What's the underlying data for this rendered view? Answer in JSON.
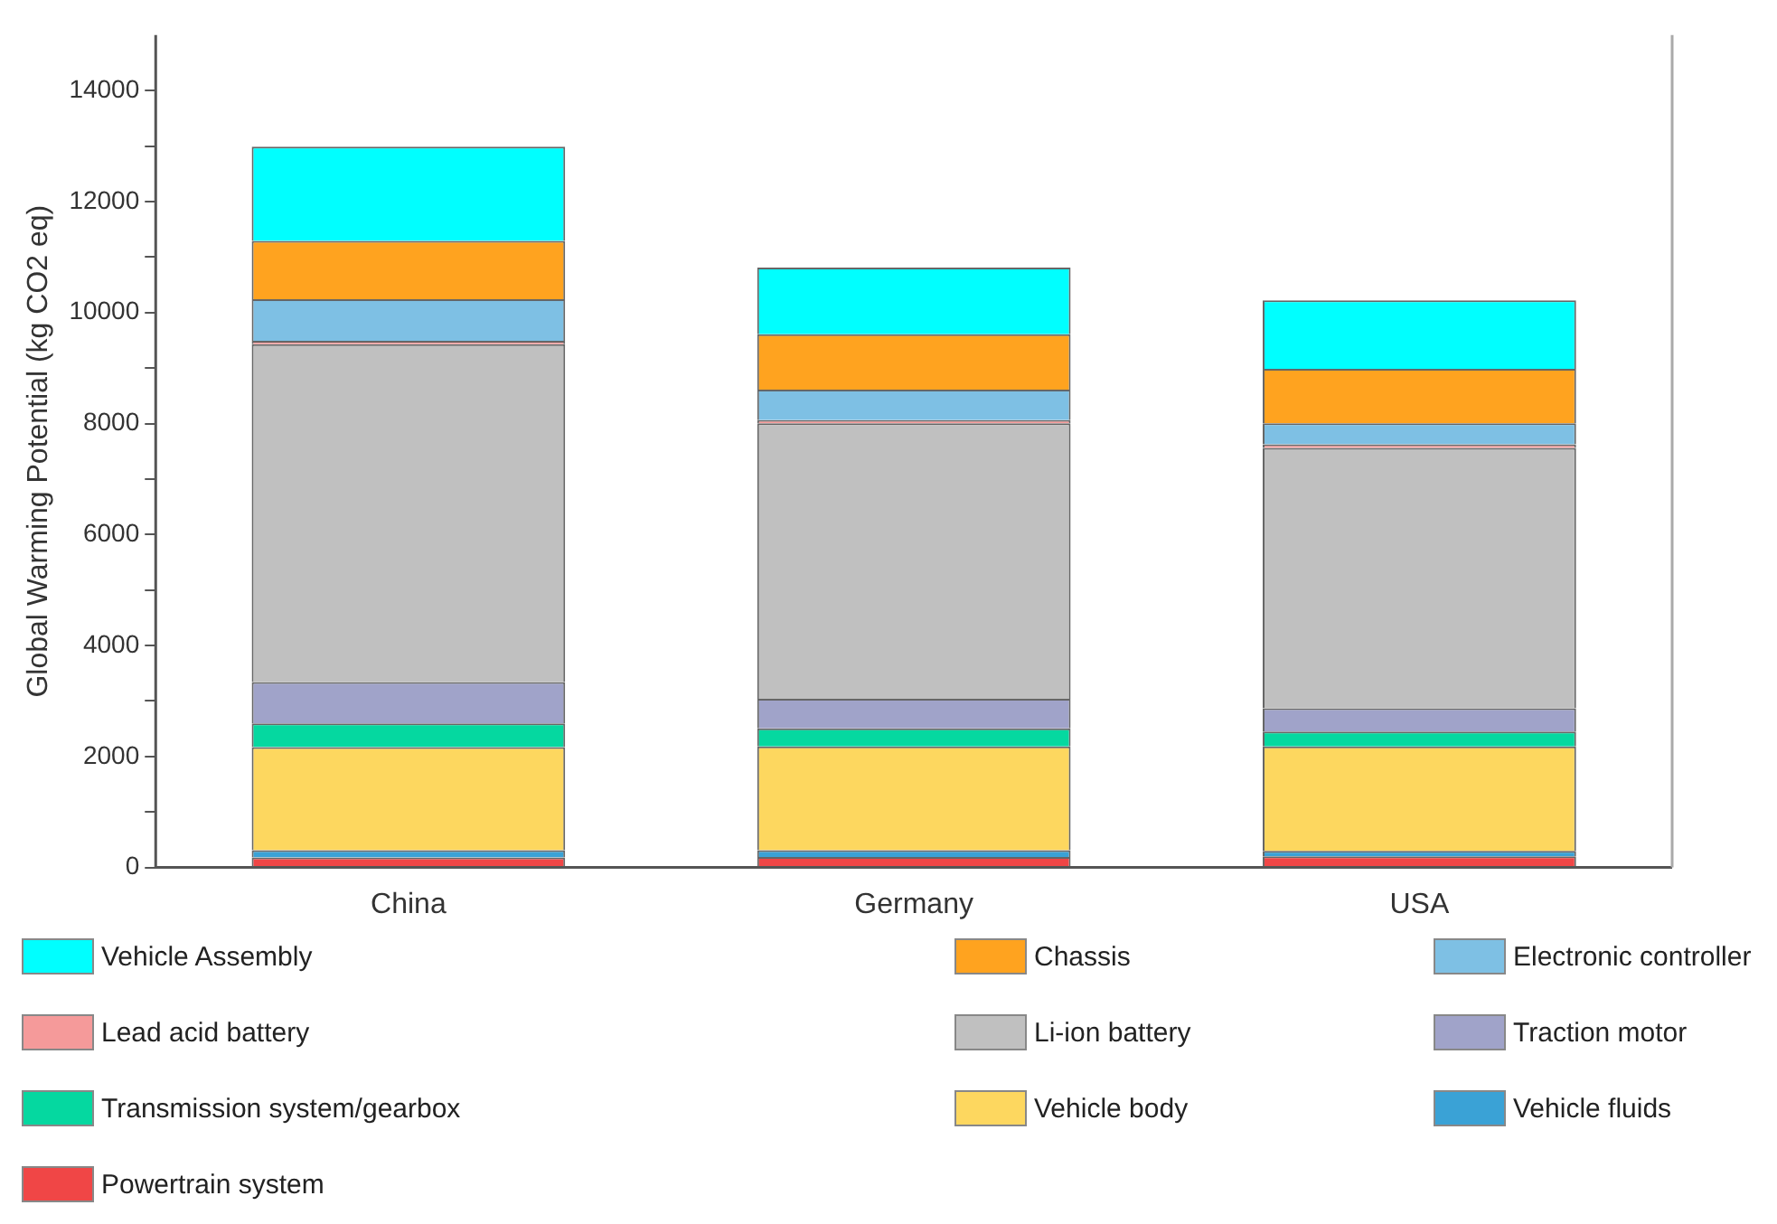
{
  "chart_data": {
    "type": "bar",
    "stacked": true,
    "ylabel": "Global Warming Potential (kg CO2 eq)",
    "categories": [
      "China",
      "Germany",
      "USA"
    ],
    "series": [
      {
        "name": "Powertrain system",
        "color": "#f04646",
        "values": [
          180,
          190,
          200
        ]
      },
      {
        "name": "Vehicle fluids",
        "color": "#3aa2d6",
        "values": [
          130,
          120,
          100
        ]
      },
      {
        "name": "Vehicle body",
        "color": "#fdd75f",
        "values": [
          1860,
          1870,
          1880
        ]
      },
      {
        "name": "Transmission system/gearbox",
        "color": "#05d8a0",
        "values": [
          425,
          325,
          270
        ]
      },
      {
        "name": "Traction motor",
        "color": "#a0a3c9",
        "values": [
          745,
          535,
          420
        ]
      },
      {
        "name": "Li-ion battery",
        "color": "#c0c0c0",
        "values": [
          6090,
          4965,
          4690
        ]
      },
      {
        "name": "Lead acid battery",
        "color": "#f59a9a",
        "values": [
          60,
          55,
          65
        ]
      },
      {
        "name": "Electronic controller",
        "color": "#7ec0e4",
        "values": [
          750,
          550,
          380
        ]
      },
      {
        "name": "Chassis",
        "color": "#ffa31f",
        "values": [
          1050,
          1000,
          980
        ]
      },
      {
        "name": "Vehicle Assembly",
        "color": "#00ffff",
        "values": [
          1700,
          1200,
          1235
        ]
      }
    ],
    "ylim": [
      0,
      15000
    ],
    "yticks": [
      0,
      {
        "value": 1000,
        "label": null
      },
      2000,
      {
        "value": 3000,
        "label": null
      },
      4000,
      {
        "value": 5000,
        "label": null
      },
      6000,
      {
        "value": 7000,
        "label": null
      },
      8000,
      {
        "value": 9000,
        "label": null
      },
      10000,
      {
        "value": 11000,
        "label": null
      },
      12000,
      {
        "value": 13000,
        "label": null
      },
      14000
    ],
    "legend": "bottom"
  }
}
